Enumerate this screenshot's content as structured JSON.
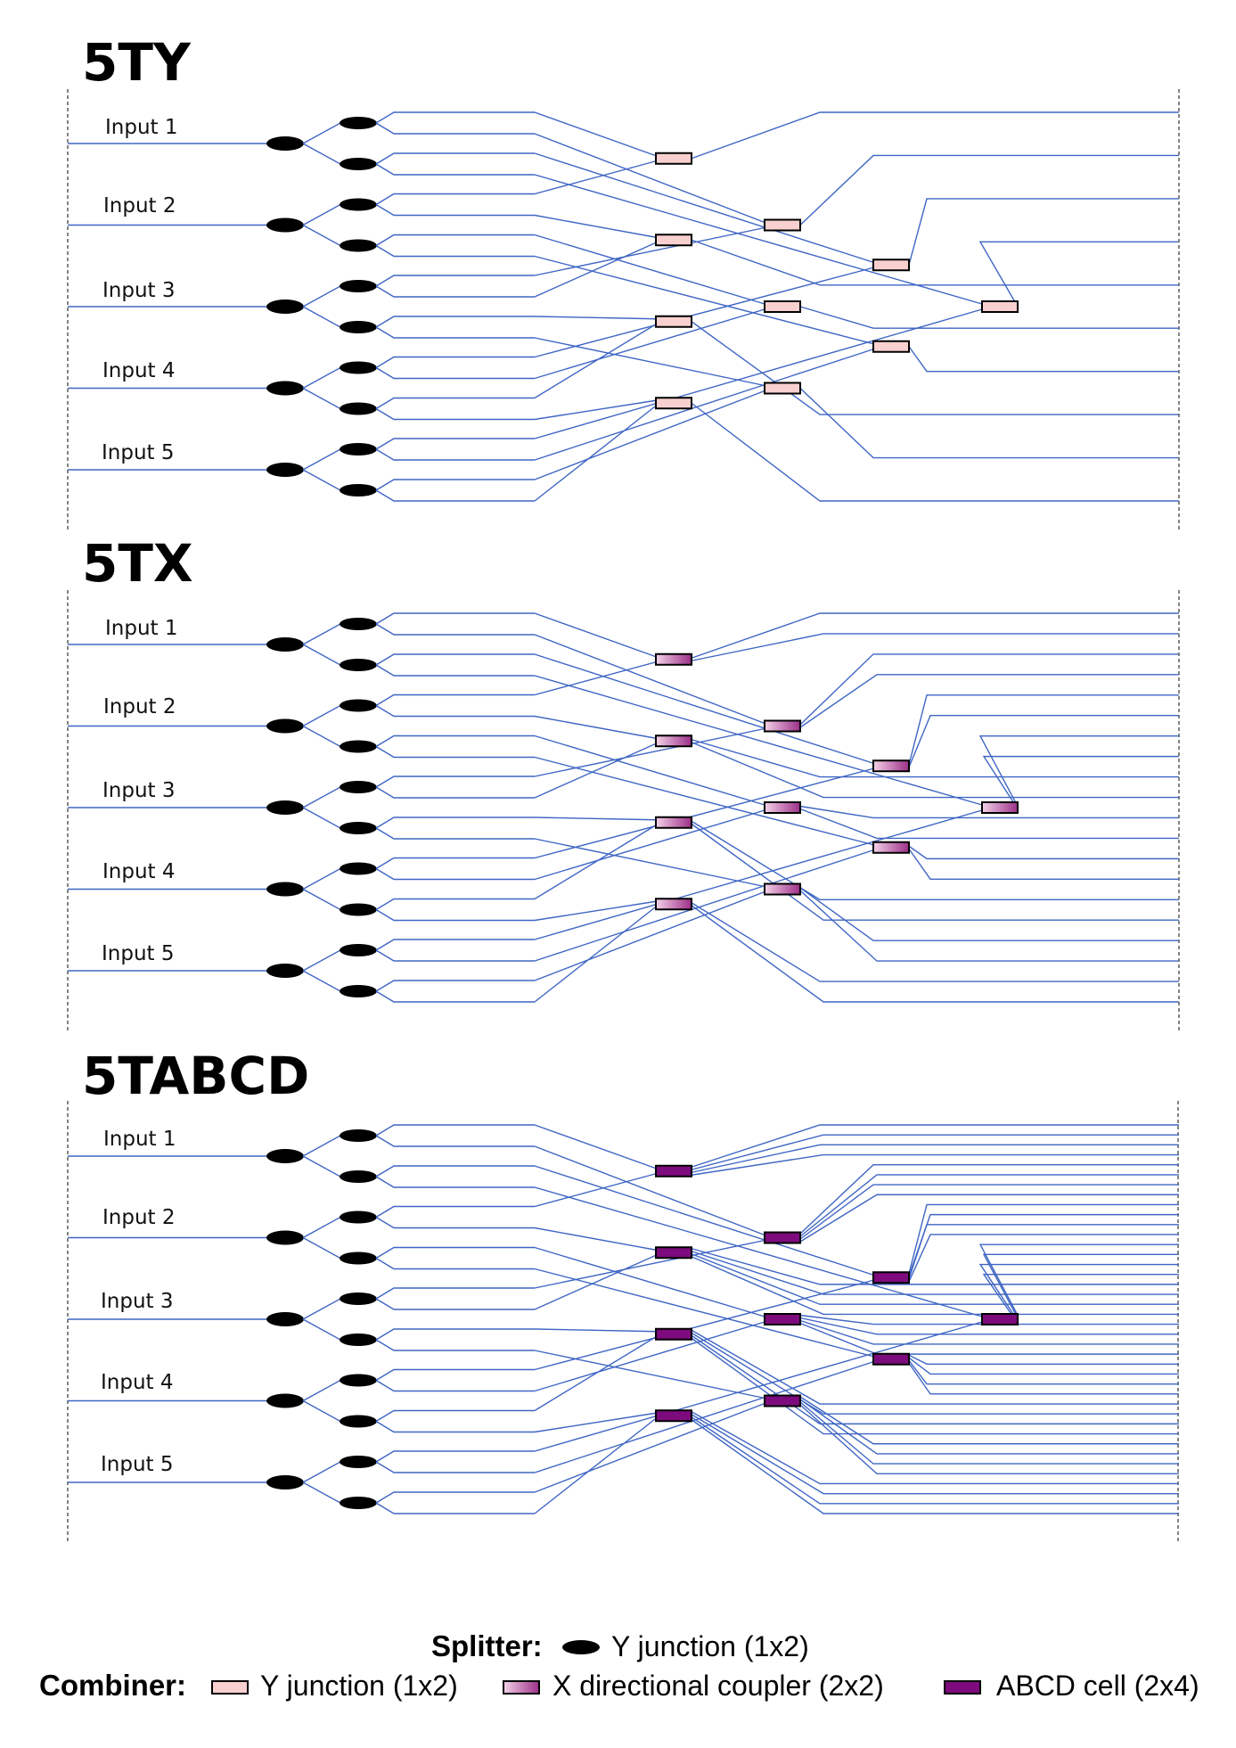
{
  "panels": [
    {
      "title": "5TY",
      "combiner_type": "y_junction",
      "inputs": [
        "Input 1",
        "Input 2",
        "Input 3",
        "Input 4",
        "Input 5"
      ]
    },
    {
      "title": "5TX",
      "combiner_type": "x_coupler",
      "inputs": [
        "Input 1",
        "Input 2",
        "Input 3",
        "Input 4",
        "Input 5"
      ]
    },
    {
      "title": "5TABCD",
      "combiner_type": "abcd_cell",
      "inputs": [
        "Input 1",
        "Input 2",
        "Input 3",
        "Input 4",
        "Input 5"
      ]
    }
  ],
  "legend": {
    "splitter_label": "Splitter:",
    "splitter_item": "Y junction (1x2)",
    "combiner_label": "Combiner:",
    "combiner_items": [
      "Y junction (1x2)",
      "X directional coupler (2x2)",
      "ABCD cell (2x4)"
    ]
  },
  "colors": {
    "waveguide": "#3f66c4",
    "splitter": "#000000",
    "y_junction_fill": "#f8d0d0",
    "x_coupler_fill_start": "#f4d2e8",
    "x_coupler_fill_end": "#9c2f88",
    "abcd_fill": "#7d0b7d"
  }
}
